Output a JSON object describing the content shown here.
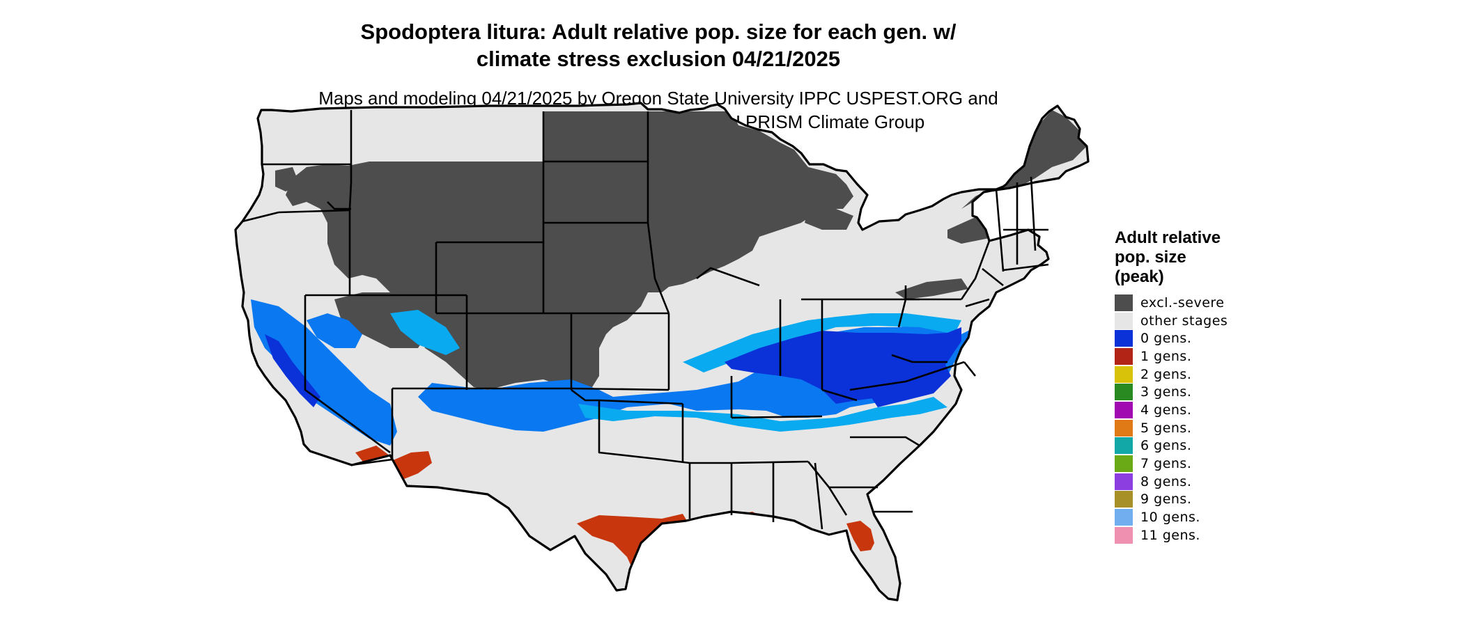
{
  "title": {
    "line1": "Spodoptera litura: Adult relative pop. size for each gen. w/",
    "line2": "climate stress exclusion 04/21/2025"
  },
  "subtitle": {
    "line1": "Maps and modeling 04/21/2025 by Oregon State University IPPC USPEST.ORG and",
    "line2": "USDA-APHIS-PPQ; climate data from OSU PRISM Climate Group"
  },
  "legend": {
    "title_line1": "Adult relative",
    "title_line2": "pop. size",
    "title_line3": "(peak)",
    "items": [
      {
        "label": "excl.-severe",
        "color": "#4d4d4d"
      },
      {
        "label": "other stages",
        "color": "#e6e6e6"
      },
      {
        "label": "0 gens.",
        "color": "#0a32d8"
      },
      {
        "label": "1 gens.",
        "color": "#b22416"
      },
      {
        "label": "2 gens.",
        "color": "#d8c20a"
      },
      {
        "label": "3 gens.",
        "color": "#2a8a22"
      },
      {
        "label": "4 gens.",
        "color": "#a00ab0"
      },
      {
        "label": "5 gens.",
        "color": "#e07a16"
      },
      {
        "label": "6 gens.",
        "color": "#12a8a8"
      },
      {
        "label": "7 gens.",
        "color": "#6aaa16"
      },
      {
        "label": "8 gens.",
        "color": "#8c3ee0"
      },
      {
        "label": "9 gens.",
        "color": "#a89028"
      },
      {
        "label": "10 gens.",
        "color": "#70aef0"
      },
      {
        "label": "11 gens.",
        "color": "#f090b0"
      }
    ]
  },
  "map_colors": {
    "excluded": "#4d4d4d",
    "other_stages": "#e6e6e6",
    "zero_gens_dark": "#0a32d8",
    "zero_gens_mid": "#0a78f0",
    "zero_gens_light": "#0aaaf0",
    "one_gen": "#c8360e",
    "two_gens": "#e6e60a",
    "border": "#000000"
  }
}
